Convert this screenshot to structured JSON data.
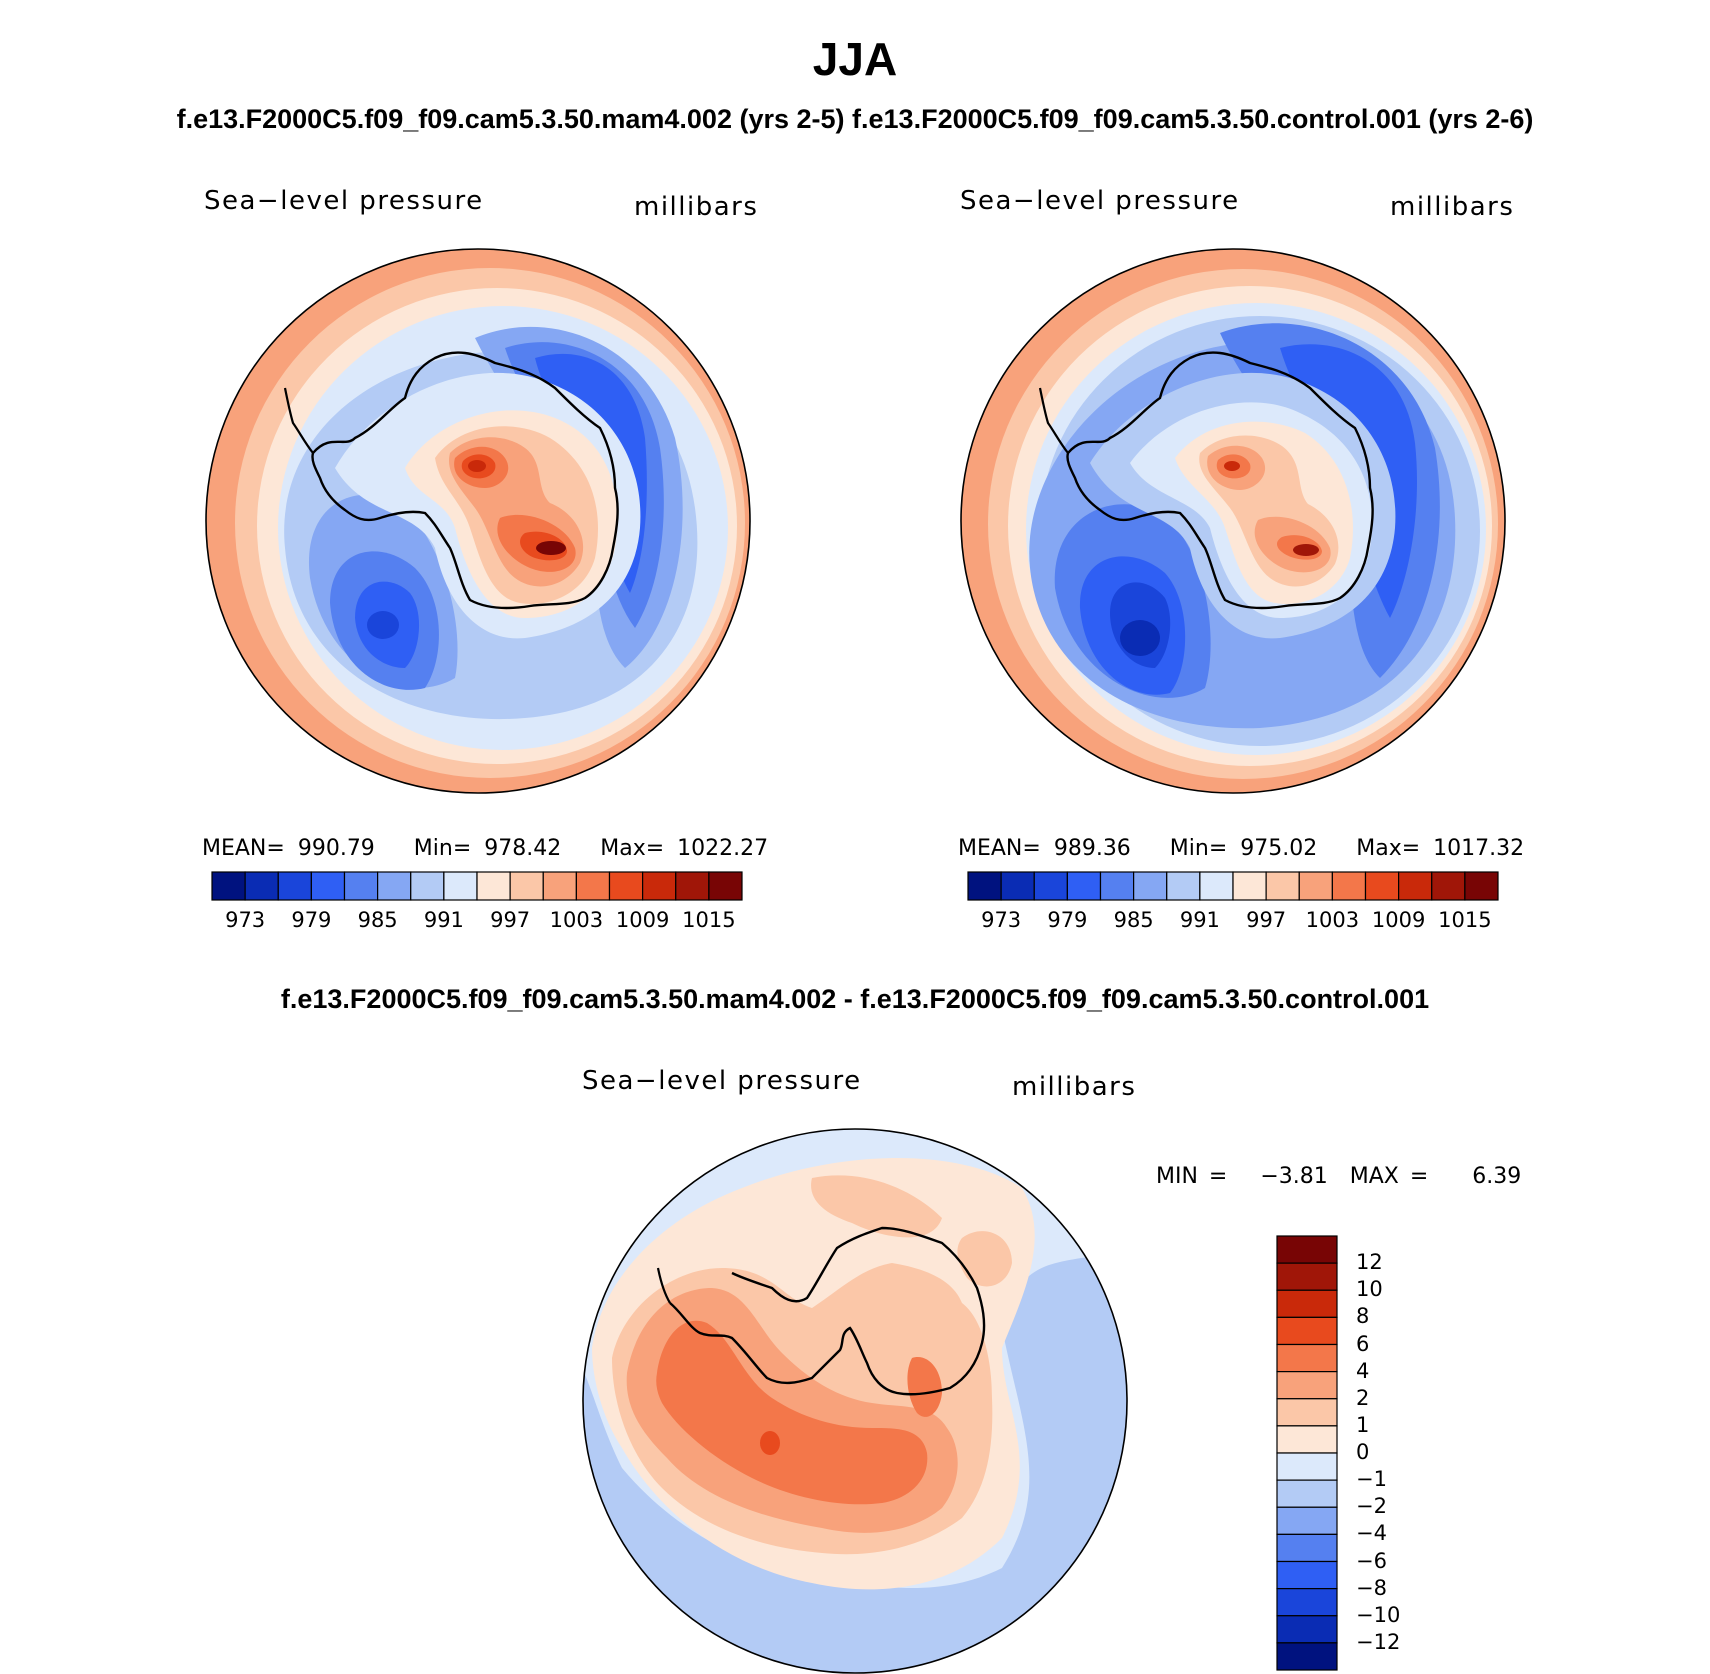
{
  "page": {
    "title": "JJA",
    "subtitle_left": "f.e13.F2000C5.f09_f09.cam5.3.50.mam4.002 (yrs 2-5)",
    "subtitle_right": "f.e13.F2000C5.f09_f09.cam5.3.50.control.001 (yrs 2-6)",
    "diff_title": "f.e13.F2000C5.f09_f09.cam5.3.50.mam4.002 - f.e13.F2000C5.f09_f09.cam5.3.50.control.001"
  },
  "panels": [
    {
      "variable": "Sea−level pressure",
      "units": "millibars",
      "mean_label": "MEAN=",
      "mean": "990.79",
      "min_label": "Min=",
      "min": "978.42",
      "max_label": "Max=",
      "max": "1022.27"
    },
    {
      "variable": "Sea−level pressure",
      "units": "millibars",
      "mean_label": "MEAN=",
      "mean": "989.36",
      "min_label": "Min=",
      "min": "975.02",
      "max_label": "Max=",
      "max": "1017.32"
    }
  ],
  "diff_panel": {
    "variable": "Sea−level pressure",
    "units": "millibars",
    "min_label": "MIN =",
    "min": "−3.81",
    "max_label": "MAX =",
    "max": "6.39"
  },
  "colorbar": {
    "colors": [
      "#00127f",
      "#0a2cb4",
      "#1a45da",
      "#2f5ff4",
      "#5580f0",
      "#85a7f3",
      "#b3cbf5",
      "#dce9fb",
      "#fde7d7",
      "#fbc7a8",
      "#f8a27b",
      "#f3774a",
      "#e84a1e",
      "#c9290a",
      "#a01608",
      "#780505"
    ],
    "ticks": [
      "973",
      "979",
      "985",
      "991",
      "997",
      "1003",
      "1009",
      "1015"
    ]
  },
  "diff_colorbar": {
    "colors": [
      "#780505",
      "#a01608",
      "#c9290a",
      "#e84a1e",
      "#f3774a",
      "#f8a27b",
      "#fbc7a8",
      "#fde7d7",
      "#dce9fb",
      "#b3cbf5",
      "#85a7f3",
      "#5580f0",
      "#2f5ff4",
      "#1a45da",
      "#0a2cb4",
      "#00127f"
    ],
    "ticks": [
      "12",
      "10",
      "8",
      "6",
      "4",
      "2",
      "1",
      "0",
      "−1",
      "−2",
      "−4",
      "−6",
      "−8",
      "−10",
      "−12"
    ]
  },
  "chart_data": {
    "type": "heatmap",
    "title": "JJA",
    "projection": "south polar stereographic",
    "field": "Sea-level pressure (millibars)",
    "series": [
      {
        "name": "f.e13.F2000C5.f09_f09.cam5.3.50.mam4.002 (yrs 2-5)",
        "mean": 990.79,
        "min": 978.42,
        "max": 1022.27
      },
      {
        "name": "f.e13.F2000C5.f09_f09.cam5.3.50.control.001 (yrs 2-6)",
        "mean": 989.36,
        "min": 975.02,
        "max": 1017.32
      },
      {
        "name": "difference (mam4.002 - control.001)",
        "min": -3.81,
        "max": 6.39
      }
    ],
    "contour_levels_abs": [
      973,
      976,
      979,
      982,
      985,
      988,
      991,
      994,
      997,
      1000,
      1003,
      1006,
      1009,
      1012,
      1015
    ],
    "contour_levels_diff": [
      -12,
      -10,
      -8,
      -6,
      -4,
      -2,
      -1,
      0,
      1,
      2,
      4,
      6,
      8,
      10,
      12
    ]
  }
}
